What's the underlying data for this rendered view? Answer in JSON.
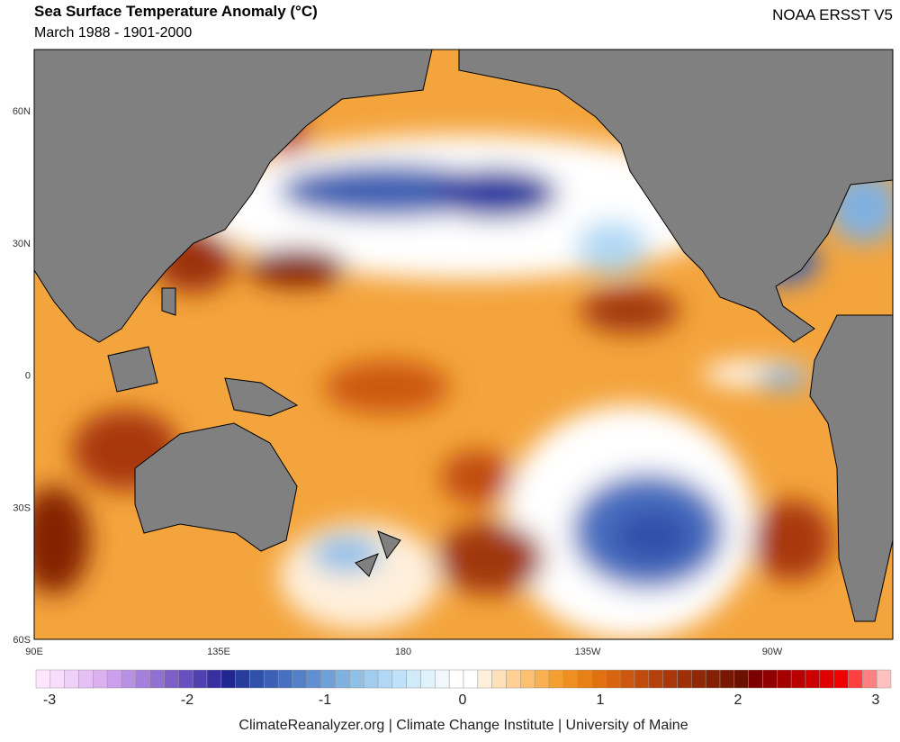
{
  "header": {
    "title": "Sea Surface Temperature Anomaly (°C)",
    "subtitle": "March 1988 - 1901-2000",
    "dataset": "NOAA ERSST V5"
  },
  "map": {
    "lat_labels": [
      "60N",
      "30N",
      "0",
      "30S",
      "60S"
    ],
    "lon_labels": [
      "90E",
      "135E",
      "180",
      "135W",
      "90W"
    ]
  },
  "colorbar": {
    "ticks": [
      -3,
      -2,
      -1,
      0,
      1,
      2,
      3
    ],
    "colors": [
      "#ffe6ff",
      "#fadcfc",
      "#f0d0f8",
      "#e6c0f4",
      "#dcb0f0",
      "#cca0ec",
      "#b890e4",
      "#a480dc",
      "#9070d0",
      "#7c60c8",
      "#6850c0",
      "#5040b0",
      "#3830a0",
      "#202890",
      "#283c9c",
      "#3050aa",
      "#3c60b4",
      "#4870c0",
      "#5480c8",
      "#6090d0",
      "#70a0d8",
      "#80b0e0",
      "#90c0e8",
      "#a0ccf0",
      "#b0d8f4",
      "#c0e2f8",
      "#d0eafa",
      "#e0f2fc",
      "#f0f8fe",
      "#ffffff",
      "#ffffff",
      "#fff0dc",
      "#ffe0b8",
      "#ffd094",
      "#fcc070",
      "#f8b050",
      "#f4a030",
      "#ee9020",
      "#e88018",
      "#e07010",
      "#d86410",
      "#cc5810",
      "#c04c0c",
      "#b4400c",
      "#a8380a",
      "#9c3008",
      "#902806",
      "#842004",
      "#781802",
      "#6c1000",
      "#7c0000",
      "#900000",
      "#a40000",
      "#b80000",
      "#cc0000",
      "#e00000",
      "#f00000",
      "#ff4040",
      "#ff8080",
      "#ffc0c0"
    ]
  },
  "footer": "ClimateReanalyzer.org | Climate Change Institute | University of Maine"
}
